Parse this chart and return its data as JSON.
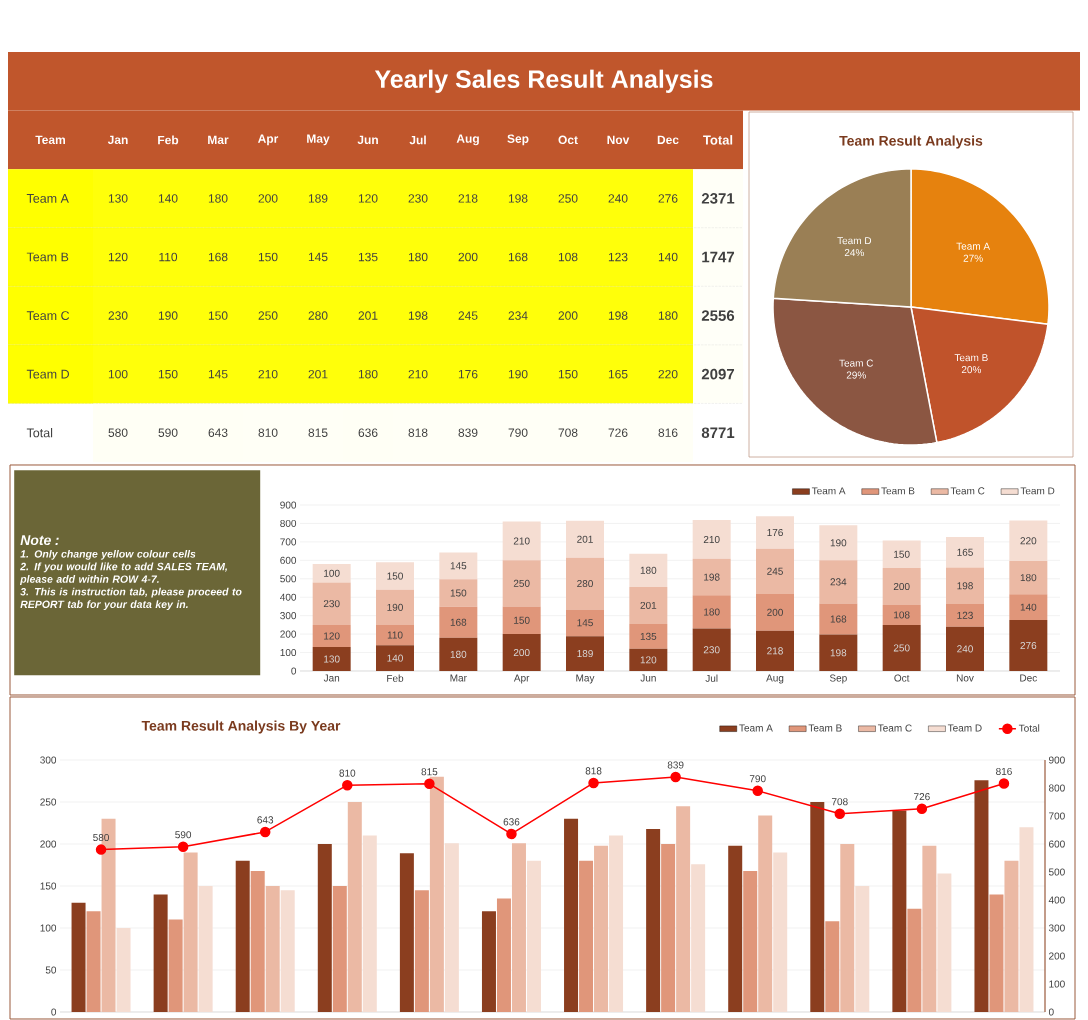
{
  "chart_data": [
    {
      "type": "heatmap",
      "title": "Yearly Sales Result Analysis",
      "ylabel": "Team",
      "categories": [
        "Jan",
        "Feb",
        "Mar",
        "Apr",
        "May",
        "Jun",
        "Jul",
        "Aug",
        "Sep",
        "Oct",
        "Nov",
        "Dec",
        "Total"
      ],
      "y_categories": [
        "Team A",
        "Team B",
        "Team C",
        "Team D",
        "Total"
      ],
      "cells": [
        [
          130,
          140,
          180,
          200,
          189,
          120,
          230,
          218,
          198,
          250,
          240,
          276,
          2371
        ],
        [
          120,
          110,
          168,
          150,
          145,
          135,
          180,
          200,
          168,
          108,
          123,
          140,
          1747
        ],
        [
          230,
          190,
          150,
          250,
          280,
          201,
          198,
          245,
          234,
          200,
          198,
          180,
          2556
        ],
        [
          100,
          150,
          145,
          210,
          201,
          180,
          210,
          176,
          190,
          150,
          165,
          220,
          2097
        ],
        [
          580,
          590,
          643,
          810,
          815,
          636,
          818,
          839,
          790,
          708,
          726,
          816,
          8771
        ]
      ],
      "cell_labels": [
        [
          "130",
          "140",
          "180",
          "200",
          "189",
          "120",
          "230",
          "218",
          "198",
          "250",
          "240",
          "276",
          "2371"
        ],
        [
          "120",
          "110",
          "168",
          "150",
          "145",
          "135",
          "180",
          "200",
          "168",
          "108",
          "123",
          "140",
          "1747"
        ],
        [
          "230",
          "190",
          "150",
          "250",
          "280",
          "201",
          "198",
          "245",
          "234",
          "200",
          "198",
          "180",
          "2556"
        ],
        [
          "100",
          "150",
          "145",
          "210",
          "201",
          "180",
          "210",
          "176",
          "190",
          "150",
          "165",
          "220",
          "2097"
        ],
        [
          "580",
          "590",
          "643",
          "810",
          "815",
          "636",
          "818",
          "839",
          "790",
          "708",
          "726",
          "816",
          "8771"
        ]
      ]
    },
    {
      "type": "pie",
      "title": "Team Result Analysis",
      "categories": [
        "Team A",
        "Team B",
        "Team C",
        "Team D"
      ],
      "values": [
        27,
        20,
        29,
        24
      ],
      "value_labels": [
        "27%",
        "20%",
        "29%",
        "24%"
      ],
      "colors": [
        "#e6820e",
        "#c0532b",
        "#8b5642",
        "#9a7f55"
      ]
    },
    {
      "type": "bar",
      "stacked": true,
      "data_labels": true,
      "grid": "y",
      "legend": "top right",
      "annotations": [
        "Note :",
        "1. Only change yellow colour cells",
        "2. If you would like to add SALES TEAM, please add within ROW 4-7.",
        "3. This is instruction tab, please proceed to REPORT tab for your data key in."
      ],
      "categories": [
        "Jan",
        "Feb",
        "Mar",
        "Apr",
        "May",
        "Jun",
        "Jul",
        "Aug",
        "Sep",
        "Oct",
        "Nov",
        "Dec"
      ],
      "ylim": [
        0,
        900
      ],
      "yticks": [
        0,
        100,
        200,
        300,
        400,
        500,
        600,
        700,
        800,
        900
      ],
      "series": [
        {
          "name": "Team A",
          "color": "#8b3e1f",
          "values": [
            130,
            140,
            180,
            200,
            189,
            120,
            230,
            218,
            198,
            250,
            240,
            276
          ]
        },
        {
          "name": "Team B",
          "color": "#e0967a",
          "values": [
            120,
            110,
            168,
            150,
            145,
            135,
            180,
            200,
            168,
            108,
            123,
            140
          ]
        },
        {
          "name": "Team C",
          "color": "#ebb9a4",
          "values": [
            230,
            190,
            150,
            250,
            280,
            201,
            198,
            245,
            234,
            200,
            198,
            180
          ]
        },
        {
          "name": "Team D",
          "color": "#f5ddd2",
          "values": [
            100,
            150,
            145,
            210,
            201,
            180,
            210,
            176,
            190,
            150,
            165,
            220
          ]
        }
      ]
    },
    {
      "type": "bar",
      "title": "Team Result Analysis By Year",
      "grid": "y",
      "legend": "top right",
      "categories": [
        null,
        null,
        null,
        null,
        null,
        null,
        null,
        null,
        null,
        null,
        null,
        null
      ],
      "ylim": [
        0,
        300
      ],
      "yticks": [
        0,
        50,
        100,
        150,
        200,
        250,
        300
      ],
      "y2lim": [
        0,
        900
      ],
      "y2ticks": [
        0,
        100,
        200,
        300,
        400,
        500,
        600,
        700,
        800,
        900
      ],
      "series": [
        {
          "name": "Team A",
          "color": "#8b3e1f",
          "values": [
            130,
            140,
            180,
            200,
            189,
            120,
            230,
            218,
            198,
            250,
            240,
            276
          ]
        },
        {
          "name": "Team B",
          "color": "#e0967a",
          "values": [
            120,
            110,
            168,
            150,
            145,
            135,
            180,
            200,
            168,
            108,
            123,
            140
          ]
        },
        {
          "name": "Team C",
          "color": "#ebb9a4",
          "values": [
            230,
            190,
            150,
            250,
            280,
            201,
            198,
            245,
            234,
            200,
            198,
            180
          ]
        },
        {
          "name": "Team D",
          "color": "#f5ddd2",
          "values": [
            100,
            150,
            145,
            210,
            201,
            180,
            210,
            176,
            190,
            150,
            165,
            220
          ]
        },
        {
          "name": "Total",
          "type": "line",
          "axis": "y2",
          "marker": "circle",
          "line_style": "solid",
          "color": "#ff0000",
          "values": [
            580,
            590,
            643,
            810,
            815,
            636,
            818,
            839,
            790,
            708,
            726,
            816
          ],
          "value_labels": [
            "580",
            "590",
            "643",
            "810",
            "815",
            "636",
            "818",
            "839",
            "790",
            "708",
            "726",
            "816"
          ]
        }
      ]
    }
  ]
}
